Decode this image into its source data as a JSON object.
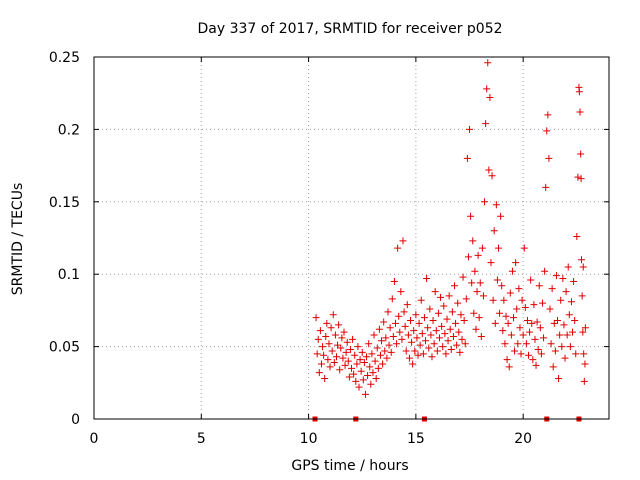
{
  "chart_data": {
    "type": "scatter",
    "title": "Day 337 of 2017, SRMTID for receiver p052",
    "xlabel": "GPS time / hours",
    "ylabel": "SRMTID / TECUs",
    "xlim": [
      0,
      24
    ],
    "ylim": [
      0,
      0.25
    ],
    "x_ticks": [
      0,
      5,
      10,
      15,
      20
    ],
    "x_tick_labels": [
      "0",
      "5",
      "10",
      "15",
      "20"
    ],
    "y_ticks": [
      0,
      0.05,
      0.1,
      0.15,
      0.2,
      0.25
    ],
    "y_tick_labels": [
      "0",
      "0.05",
      "0.1",
      "0.15",
      "0.2",
      "0.25"
    ],
    "grid": true,
    "marker": "plus",
    "series_color": "#e00000",
    "zero_markers_x": [
      10.3,
      12.2,
      15.4,
      21.1,
      22.6
    ],
    "points": [
      [
        10.35,
        0.07
      ],
      [
        10.4,
        0.045
      ],
      [
        10.45,
        0.055
      ],
      [
        10.5,
        0.032
      ],
      [
        10.55,
        0.061
      ],
      [
        10.6,
        0.038
      ],
      [
        10.65,
        0.05
      ],
      [
        10.7,
        0.044
      ],
      [
        10.75,
        0.028
      ],
      [
        10.8,
        0.057
      ],
      [
        10.85,
        0.066
      ],
      [
        10.9,
        0.041
      ],
      [
        10.95,
        0.052
      ],
      [
        11.0,
        0.036
      ],
      [
        11.05,
        0.063
      ],
      [
        11.1,
        0.047
      ],
      [
        11.15,
        0.072
      ],
      [
        11.2,
        0.039
      ],
      [
        11.25,
        0.058
      ],
      [
        11.3,
        0.043
      ],
      [
        11.35,
        0.051
      ],
      [
        11.4,
        0.065
      ],
      [
        11.45,
        0.034
      ],
      [
        11.5,
        0.049
      ],
      [
        11.55,
        0.056
      ],
      [
        11.6,
        0.042
      ],
      [
        11.65,
        0.06
      ],
      [
        11.7,
        0.037
      ],
      [
        11.75,
        0.046
      ],
      [
        11.8,
        0.053
      ],
      [
        11.85,
        0.04
      ],
      [
        11.9,
        0.029
      ],
      [
        11.95,
        0.048
      ],
      [
        12.0,
        0.035
      ],
      [
        12.05,
        0.055
      ],
      [
        12.1,
        0.031
      ],
      [
        12.15,
        0.044
      ],
      [
        12.2,
        0.026
      ],
      [
        12.25,
        0.038
      ],
      [
        12.3,
        0.05
      ],
      [
        12.35,
        0.022
      ],
      [
        12.4,
        0.041
      ],
      [
        12.45,
        0.033
      ],
      [
        12.5,
        0.046
      ],
      [
        12.55,
        0.027
      ],
      [
        12.6,
        0.039
      ],
      [
        12.65,
        0.017
      ],
      [
        12.7,
        0.043
      ],
      [
        12.75,
        0.03
      ],
      [
        12.8,
        0.052
      ],
      [
        12.85,
        0.036
      ],
      [
        12.9,
        0.024
      ],
      [
        12.95,
        0.045
      ],
      [
        13.0,
        0.032
      ],
      [
        13.05,
        0.058
      ],
      [
        13.1,
        0.04
      ],
      [
        13.15,
        0.028
      ],
      [
        13.2,
        0.049
      ],
      [
        13.25,
        0.035
      ],
      [
        13.3,
        0.062
      ],
      [
        13.35,
        0.044
      ],
      [
        13.4,
        0.054
      ],
      [
        13.45,
        0.038
      ],
      [
        13.5,
        0.067
      ],
      [
        13.55,
        0.047
      ],
      [
        13.6,
        0.056
      ],
      [
        13.65,
        0.042
      ],
      [
        13.7,
        0.074
      ],
      [
        13.75,
        0.051
      ],
      [
        13.8,
        0.063
      ],
      [
        13.85,
        0.046
      ],
      [
        13.9,
        0.083
      ],
      [
        13.95,
        0.057
      ],
      [
        14.0,
        0.095
      ],
      [
        14.05,
        0.066
      ],
      [
        14.1,
        0.052
      ],
      [
        14.15,
        0.118
      ],
      [
        14.2,
        0.071
      ],
      [
        14.25,
        0.06
      ],
      [
        14.3,
        0.088
      ],
      [
        14.35,
        0.055
      ],
      [
        14.4,
        0.123
      ],
      [
        14.45,
        0.074
      ],
      [
        14.5,
        0.064
      ],
      [
        14.55,
        0.047
      ],
      [
        14.6,
        0.079
      ],
      [
        14.65,
        0.058
      ],
      [
        14.7,
        0.042
      ],
      [
        14.75,
        0.068
      ],
      [
        14.8,
        0.053
      ],
      [
        14.85,
        0.038
      ],
      [
        14.9,
        0.061
      ],
      [
        14.95,
        0.047
      ],
      [
        15.0,
        0.072
      ],
      [
        15.05,
        0.056
      ],
      [
        15.1,
        0.044
      ],
      [
        15.15,
        0.066
      ],
      [
        15.2,
        0.051
      ],
      [
        15.25,
        0.082
      ],
      [
        15.3,
        0.059
      ],
      [
        15.35,
        0.045
      ],
      [
        15.4,
        0.07
      ],
      [
        15.45,
        0.054
      ],
      [
        15.5,
        0.097
      ],
      [
        15.55,
        0.063
      ],
      [
        15.6,
        0.049
      ],
      [
        15.65,
        0.076
      ],
      [
        15.7,
        0.058
      ],
      [
        15.75,
        0.043
      ],
      [
        15.8,
        0.068
      ],
      [
        15.85,
        0.052
      ],
      [
        15.9,
        0.088
      ],
      [
        15.95,
        0.061
      ],
      [
        16.0,
        0.047
      ],
      [
        16.05,
        0.073
      ],
      [
        16.1,
        0.056
      ],
      [
        16.15,
        0.084
      ],
      [
        16.2,
        0.064
      ],
      [
        16.25,
        0.05
      ],
      [
        16.3,
        0.078
      ],
      [
        16.35,
        0.059
      ],
      [
        16.4,
        0.045
      ],
      [
        16.45,
        0.069
      ],
      [
        16.5,
        0.054
      ],
      [
        16.55,
        0.085
      ],
      [
        16.6,
        0.062
      ],
      [
        16.65,
        0.048
      ],
      [
        16.7,
        0.074
      ],
      [
        16.75,
        0.057
      ],
      [
        16.8,
        0.092
      ],
      [
        16.85,
        0.066
      ],
      [
        16.9,
        0.051
      ],
      [
        16.95,
        0.08
      ],
      [
        17.0,
        0.06
      ],
      [
        17.05,
        0.046
      ],
      [
        17.1,
        0.072
      ],
      [
        17.15,
        0.055
      ],
      [
        17.2,
        0.098
      ],
      [
        17.25,
        0.068
      ],
      [
        17.3,
        0.052
      ],
      [
        17.35,
        0.083
      ],
      [
        17.4,
        0.18
      ],
      [
        17.45,
        0.112
      ],
      [
        17.5,
        0.2
      ],
      [
        17.55,
        0.14
      ],
      [
        17.6,
        0.094
      ],
      [
        17.65,
        0.123
      ],
      [
        17.7,
        0.073
      ],
      [
        17.75,
        0.102
      ],
      [
        17.8,
        0.062
      ],
      [
        17.85,
        0.088
      ],
      [
        17.9,
        0.113
      ],
      [
        17.95,
        0.07
      ],
      [
        18.0,
        0.094
      ],
      [
        18.05,
        0.057
      ],
      [
        18.1,
        0.118
      ],
      [
        18.15,
        0.085
      ],
      [
        18.2,
        0.15
      ],
      [
        18.25,
        0.204
      ],
      [
        18.3,
        0.228
      ],
      [
        18.35,
        0.246
      ],
      [
        18.4,
        0.172
      ],
      [
        18.45,
        0.222
      ],
      [
        18.5,
        0.108
      ],
      [
        18.55,
        0.168
      ],
      [
        18.6,
        0.082
      ],
      [
        18.65,
        0.13
      ],
      [
        18.7,
        0.066
      ],
      [
        18.75,
        0.148
      ],
      [
        18.8,
        0.096
      ],
      [
        18.85,
        0.118
      ],
      [
        18.9,
        0.073
      ],
      [
        18.95,
        0.14
      ],
      [
        19.0,
        0.092
      ],
      [
        19.05,
        0.061
      ],
      [
        19.1,
        0.082
      ],
      [
        19.15,
        0.052
      ],
      [
        19.2,
        0.071
      ],
      [
        19.25,
        0.041
      ],
      [
        19.3,
        0.066
      ],
      [
        19.35,
        0.036
      ],
      [
        19.4,
        0.087
      ],
      [
        19.45,
        0.058
      ],
      [
        19.5,
        0.102
      ],
      [
        19.55,
        0.07
      ],
      [
        19.6,
        0.047
      ],
      [
        19.65,
        0.108
      ],
      [
        19.7,
        0.076
      ],
      [
        19.75,
        0.052
      ],
      [
        19.8,
        0.09
      ],
      [
        19.85,
        0.063
      ],
      [
        19.9,
        0.045
      ],
      [
        19.95,
        0.082
      ],
      [
        20.0,
        0.058
      ],
      [
        20.05,
        0.118
      ],
      [
        20.1,
        0.077
      ],
      [
        20.15,
        0.052
      ],
      [
        20.2,
        0.068
      ],
      [
        20.25,
        0.044
      ],
      [
        20.3,
        0.06
      ],
      [
        20.35,
        0.096
      ],
      [
        20.4,
        0.066
      ],
      [
        20.45,
        0.041
      ],
      [
        20.5,
        0.079
      ],
      [
        20.55,
        0.055
      ],
      [
        20.6,
        0.037
      ],
      [
        20.65,
        0.067
      ],
      [
        20.7,
        0.048
      ],
      [
        20.75,
        0.092
      ],
      [
        20.8,
        0.063
      ],
      [
        20.85,
        0.045
      ],
      [
        20.9,
        0.08
      ],
      [
        20.95,
        0.056
      ],
      [
        21.0,
        0.102
      ],
      [
        21.05,
        0.16
      ],
      [
        21.1,
        0.199
      ],
      [
        21.15,
        0.21
      ],
      [
        21.2,
        0.18
      ],
      [
        21.25,
        0.076
      ],
      [
        21.3,
        0.052
      ],
      [
        21.35,
        0.09
      ],
      [
        21.4,
        0.036
      ],
      [
        21.45,
        0.066
      ],
      [
        21.5,
        0.047
      ],
      [
        21.55,
        0.099
      ],
      [
        21.6,
        0.068
      ],
      [
        21.65,
        0.028
      ],
      [
        21.7,
        0.058
      ],
      [
        21.75,
        0.082
      ],
      [
        21.8,
        0.05
      ],
      [
        21.85,
        0.097
      ],
      [
        21.9,
        0.065
      ],
      [
        21.95,
        0.042
      ],
      [
        22.0,
        0.088
      ],
      [
        22.05,
        0.058
      ],
      [
        22.1,
        0.105
      ],
      [
        22.15,
        0.072
      ],
      [
        22.2,
        0.05
      ],
      [
        22.25,
        0.081
      ],
      [
        22.3,
        0.06
      ],
      [
        22.35,
        0.095
      ],
      [
        22.4,
        0.068
      ],
      [
        22.45,
        0.045
      ],
      [
        22.5,
        0.126
      ],
      [
        22.55,
        0.167
      ],
      [
        22.6,
        0.229
      ],
      [
        22.62,
        0.226
      ],
      [
        22.65,
        0.212
      ],
      [
        22.68,
        0.183
      ],
      [
        22.7,
        0.166
      ],
      [
        22.72,
        0.11
      ],
      [
        22.75,
        0.085
      ],
      [
        22.78,
        0.06
      ],
      [
        22.8,
        0.105
      ],
      [
        22.82,
        0.045
      ],
      [
        22.85,
        0.026
      ],
      [
        22.88,
        0.038
      ],
      [
        22.9,
        0.063
      ]
    ]
  }
}
